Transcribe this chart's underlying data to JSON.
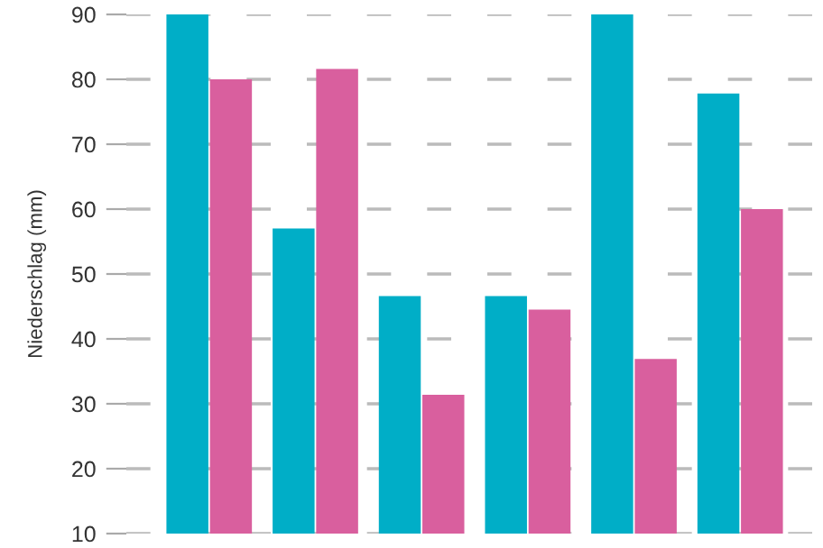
{
  "chart_data": {
    "type": "bar",
    "ylabel": "Niederschlag (mm)",
    "categories": [
      null,
      null,
      null,
      null,
      null,
      null
    ],
    "series": [
      {
        "color": "#00aec7",
        "values": [
          90,
          57,
          46.6,
          46.6,
          90,
          77.8
        ]
      },
      {
        "color": "#d95f9e",
        "values": [
          80,
          81.6,
          31.4,
          44.5,
          36.9,
          60
        ]
      }
    ],
    "ylim": [
      10,
      90
    ],
    "yticks": [
      10,
      20,
      30,
      40,
      50,
      60,
      70,
      80,
      90
    ],
    "grid": "y",
    "legend": false
  }
}
